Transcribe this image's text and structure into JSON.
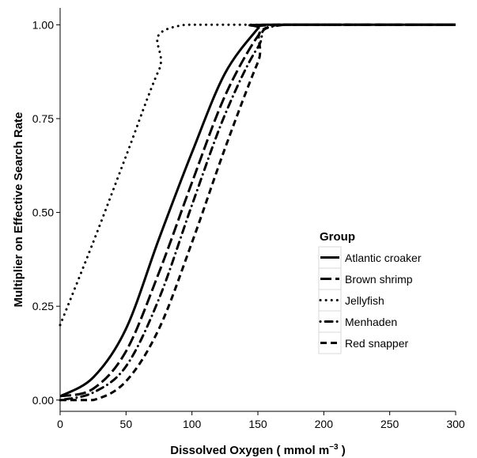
{
  "chart_data": {
    "type": "line",
    "xlabel": "Dissolved Oxygen ( mmol m",
    "xlabel_sup": "−3",
    "xlabel_end": " )",
    "ylabel": "Multiplier on Effective Search Rate",
    "xlim": [
      0,
      300
    ],
    "ylim": [
      0,
      1.0
    ],
    "x_ticks": [
      0,
      50,
      100,
      150,
      200,
      250,
      300
    ],
    "x_tick_labels": [
      "0",
      "50",
      "100",
      "150",
      "200",
      "250",
      "300"
    ],
    "y_ticks": [
      0,
      0.25,
      0.5,
      0.75,
      1.0
    ],
    "y_tick_labels": [
      "0.00",
      "0.25",
      "0.50",
      "0.75",
      "1.00"
    ],
    "grid": false,
    "legend": {
      "title": "Group",
      "placement": "right-center"
    },
    "series": [
      {
        "name": "Atlantic croaker",
        "dash": "solid",
        "x": [
          0,
          25,
          50,
          75,
          100,
          125,
          150,
          155,
          300
        ],
        "y": [
          0.01,
          0.06,
          0.19,
          0.43,
          0.66,
          0.87,
          0.99,
          1.0,
          1.0
        ]
      },
      {
        "name": "Brown shrimp",
        "dash": "longdash",
        "x": [
          0,
          25,
          50,
          75,
          100,
          125,
          150,
          163,
          300
        ],
        "y": [
          0.01,
          0.03,
          0.13,
          0.34,
          0.58,
          0.81,
          0.97,
          1.0,
          1.0
        ]
      },
      {
        "name": "Jellyfish",
        "dash": "dotted",
        "x": [
          0,
          25,
          50,
          75,
          95,
          300
        ],
        "y": [
          0.2,
          0.42,
          0.65,
          0.88,
          1.0,
          1.0
        ]
      },
      {
        "name": "Menhaden",
        "dash": "dotdash",
        "x": [
          0,
          25,
          50,
          75,
          100,
          125,
          150,
          170,
          300
        ],
        "y": [
          0.0,
          0.02,
          0.09,
          0.27,
          0.52,
          0.76,
          0.94,
          1.0,
          1.0
        ]
      },
      {
        "name": "Red snapper",
        "dash": "dashed",
        "x": [
          0,
          25,
          50,
          75,
          100,
          125,
          150,
          165,
          300
        ],
        "y": [
          0.0,
          0.0,
          0.05,
          0.19,
          0.42,
          0.67,
          0.9,
          1.0,
          1.0
        ]
      }
    ]
  }
}
